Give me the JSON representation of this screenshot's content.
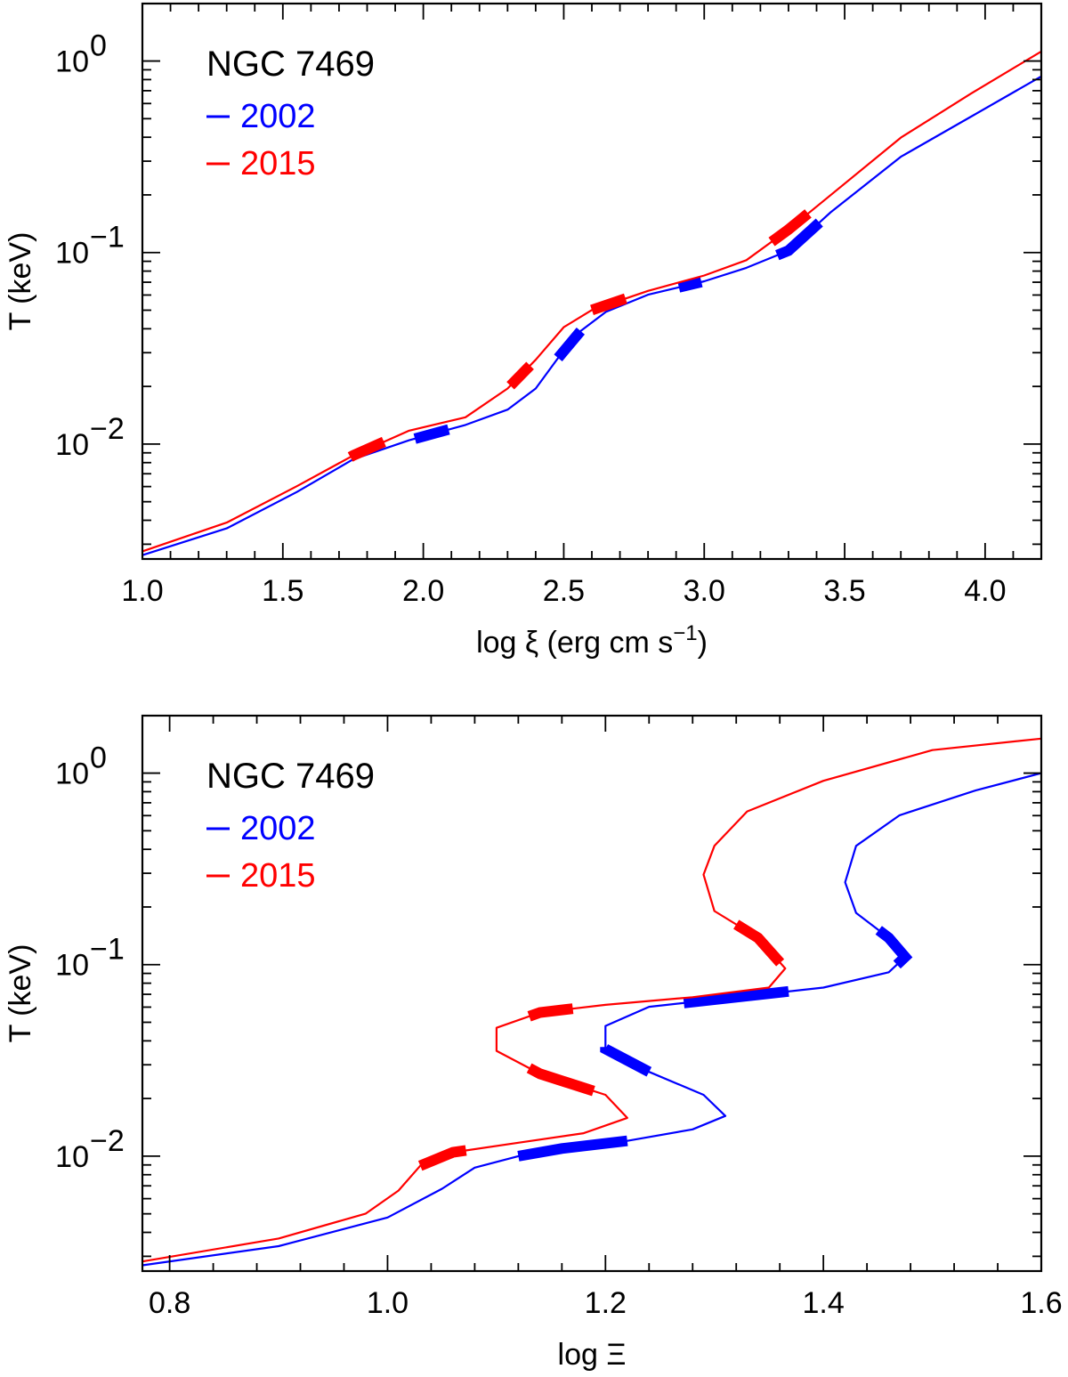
{
  "chart_data": [
    {
      "type": "line",
      "title": "NGC 7469",
      "xlabel": "log ξ (erg cm s⁻¹)",
      "xlabel_parts": [
        "log ξ (erg cm s",
        "−1",
        ")"
      ],
      "ylabel": "T (keV)",
      "xlim": [
        1.0,
        4.2
      ],
      "ylim_log10": [
        -2.6,
        0.3
      ],
      "yscale": "log",
      "x_ticks": [
        1.0,
        1.5,
        2.0,
        2.5,
        3.0,
        3.5,
        4.0
      ],
      "x_tick_labels": [
        "1.0",
        "1.5",
        "2.0",
        "2.5",
        "3.0",
        "3.5",
        "4.0"
      ],
      "y_ticks_log10": [
        -2,
        -1,
        0
      ],
      "y_tick_labels": [
        {
          "base": "10",
          "exp": "−2"
        },
        {
          "base": "10",
          "exp": "−1"
        },
        {
          "base": "10",
          "exp": "0"
        }
      ],
      "legend": {
        "position": "top-left",
        "entries": [
          {
            "label": "2002",
            "color": "#0000ff"
          },
          {
            "label": "2015",
            "color": "#ff0000"
          }
        ]
      },
      "series": [
        {
          "name": "2002",
          "color": "#0000ff",
          "points": [
            [
              1.0,
              -2.58
            ],
            [
              1.3,
              -2.44
            ],
            [
              1.55,
              -2.25
            ],
            [
              1.75,
              -2.08
            ],
            [
              1.95,
              -1.98
            ],
            [
              2.15,
              -1.9
            ],
            [
              2.3,
              -1.82
            ],
            [
              2.4,
              -1.71
            ],
            [
              2.48,
              -1.55
            ],
            [
              2.56,
              -1.41
            ],
            [
              2.65,
              -1.31
            ],
            [
              2.8,
              -1.22
            ],
            [
              3.0,
              -1.15
            ],
            [
              3.15,
              -1.08
            ],
            [
              3.3,
              -0.99
            ],
            [
              3.45,
              -0.79
            ],
            [
              3.7,
              -0.5
            ],
            [
              3.95,
              -0.29
            ],
            [
              4.2,
              -0.08
            ]
          ],
          "highlight_segments": [
            [
              1.97,
              2.09
            ],
            [
              2.48,
              2.56
            ],
            [
              2.91,
              2.99
            ],
            [
              3.26,
              3.41
            ]
          ]
        },
        {
          "name": "2015",
          "color": "#ff0000",
          "points": [
            [
              1.0,
              -2.56
            ],
            [
              1.3,
              -2.41
            ],
            [
              1.55,
              -2.22
            ],
            [
              1.75,
              -2.06
            ],
            [
              1.95,
              -1.93
            ],
            [
              2.15,
              -1.86
            ],
            [
              2.3,
              -1.71
            ],
            [
              2.4,
              -1.56
            ],
            [
              2.5,
              -1.39
            ],
            [
              2.6,
              -1.3
            ],
            [
              2.8,
              -1.2
            ],
            [
              3.0,
              -1.12
            ],
            [
              3.15,
              -1.04
            ],
            [
              3.3,
              -0.88
            ],
            [
              3.45,
              -0.7
            ],
            [
              3.7,
              -0.4
            ],
            [
              3.95,
              -0.17
            ],
            [
              4.2,
              0.05
            ]
          ],
          "highlight_segments": [
            [
              1.74,
              1.86
            ],
            [
              2.31,
              2.38
            ],
            [
              2.6,
              2.72
            ],
            [
              3.24,
              3.37
            ]
          ]
        }
      ]
    },
    {
      "type": "line",
      "title": "NGC 7469",
      "xlabel": "log Ξ",
      "xlabel_parts": [
        "log Ξ"
      ],
      "ylabel": "T (keV)",
      "xlim": [
        0.775,
        1.6
      ],
      "ylim_log10": [
        -2.6,
        0.3
      ],
      "yscale": "log",
      "x_ticks": [
        0.8,
        1.0,
        1.2,
        1.4,
        1.6
      ],
      "x_tick_labels": [
        "0.8",
        "1.0",
        "1.2",
        "1.4",
        "1.6"
      ],
      "y_ticks_log10": [
        -2,
        -1,
        0
      ],
      "y_tick_labels": [
        {
          "base": "10",
          "exp": "−2"
        },
        {
          "base": "10",
          "exp": "−1"
        },
        {
          "base": "10",
          "exp": "0"
        }
      ],
      "legend": {
        "position": "top-left",
        "entries": [
          {
            "label": "2002",
            "color": "#0000ff"
          },
          {
            "label": "2015",
            "color": "#ff0000"
          }
        ]
      },
      "series": [
        {
          "name": "2002",
          "color": "#0000ff",
          "points": [
            [
              0.775,
              -2.57
            ],
            [
              0.9,
              -2.47
            ],
            [
              1.0,
              -2.32
            ],
            [
              1.05,
              -2.17
            ],
            [
              1.08,
              -2.06
            ],
            [
              1.12,
              -2.0
            ],
            [
              1.16,
              -1.96
            ],
            [
              1.22,
              -1.92
            ],
            [
              1.28,
              -1.86
            ],
            [
              1.31,
              -1.79
            ],
            [
              1.29,
              -1.68
            ],
            [
              1.24,
              -1.56
            ],
            [
              1.2,
              -1.44
            ],
            [
              1.2,
              -1.32
            ],
            [
              1.24,
              -1.22
            ],
            [
              1.32,
              -1.17
            ],
            [
              1.4,
              -1.12
            ],
            [
              1.46,
              -1.04
            ],
            [
              1.475,
              -0.96
            ],
            [
              1.46,
              -0.86
            ],
            [
              1.43,
              -0.73
            ],
            [
              1.42,
              -0.57
            ],
            [
              1.43,
              -0.38
            ],
            [
              1.47,
              -0.22
            ],
            [
              1.54,
              -0.09
            ],
            [
              1.6,
              0.0
            ]
          ],
          "highlight_segments_t_log10": [
            [
              -2.0,
              -1.92
            ],
            [
              -1.56,
              -1.43
            ],
            [
              -1.2,
              -1.14
            ],
            [
              -1.0,
              -0.82
            ]
          ]
        },
        {
          "name": "2015",
          "color": "#ff0000",
          "points": [
            [
              0.775,
              -2.55
            ],
            [
              0.9,
              -2.43
            ],
            [
              0.98,
              -2.3
            ],
            [
              1.01,
              -2.18
            ],
            [
              1.03,
              -2.05
            ],
            [
              1.06,
              -1.98
            ],
            [
              1.12,
              -1.93
            ],
            [
              1.18,
              -1.88
            ],
            [
              1.22,
              -1.8
            ],
            [
              1.2,
              -1.68
            ],
            [
              1.14,
              -1.57
            ],
            [
              1.1,
              -1.45
            ],
            [
              1.1,
              -1.33
            ],
            [
              1.14,
              -1.25
            ],
            [
              1.2,
              -1.21
            ],
            [
              1.28,
              -1.17
            ],
            [
              1.35,
              -1.12
            ],
            [
              1.365,
              -1.02
            ],
            [
              1.34,
              -0.86
            ],
            [
              1.3,
              -0.72
            ],
            [
              1.29,
              -0.53
            ],
            [
              1.3,
              -0.38
            ],
            [
              1.33,
              -0.2
            ],
            [
              1.4,
              -0.04
            ],
            [
              1.5,
              0.12
            ],
            [
              1.6,
              0.18
            ]
          ],
          "highlight_segments_t_log10": [
            [
              -2.05,
              -1.97
            ],
            [
              -1.66,
              -1.54
            ],
            [
              -1.27,
              -1.23
            ],
            [
              -0.99,
              -0.79
            ]
          ]
        }
      ]
    }
  ]
}
